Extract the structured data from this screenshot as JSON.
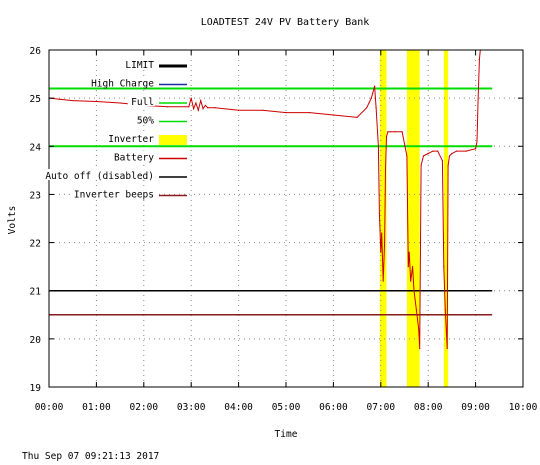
{
  "chart_data": {
    "type": "line",
    "title": "LOADTEST 24V PV Battery Bank",
    "xlabel": "Time",
    "ylabel": "Volts",
    "timestamp": "Thu Sep 07 09:21:13 2017",
    "xlim": [
      0,
      10
    ],
    "ylim": [
      19,
      26
    ],
    "x_ticks": [
      "00:00",
      "01:00",
      "02:00",
      "03:00",
      "04:00",
      "05:00",
      "06:00",
      "07:00",
      "08:00",
      "09:00",
      "10:00"
    ],
    "y_ticks": [
      "19",
      "20",
      "21",
      "22",
      "23",
      "24",
      "25",
      "26"
    ],
    "grid": true,
    "legend_position": "top-left",
    "legend": [
      {
        "label": "LIMIT",
        "color": "#000000",
        "style": "thick-line"
      },
      {
        "label": "High Charge",
        "color": "#1a2fa0",
        "style": "line"
      },
      {
        "label": "Full",
        "color": "#00dd00",
        "style": "line"
      },
      {
        "label": "50%",
        "color": "#00dd00",
        "style": "line"
      },
      {
        "label": "Inverter",
        "color": "#ffff00",
        "style": "box"
      },
      {
        "label": "Battery",
        "color": "#cc0000",
        "style": "line"
      },
      {
        "label": "Auto off (disabled)",
        "color": "#000000",
        "style": "line"
      },
      {
        "label": "Inverter beeps",
        "color": "#8b1a1a",
        "style": "line"
      }
    ],
    "thresholds": {
      "Full": 25.2,
      "50%": 24.0,
      "Auto off (disabled)": 21.0,
      "Inverter beeps": 20.5
    },
    "inverter_periods": [
      [
        6.98,
        7.12
      ],
      [
        7.55,
        7.82
      ],
      [
        8.33,
        8.42
      ]
    ],
    "battery": {
      "x": [
        0.0,
        0.5,
        1.0,
        1.5,
        2.0,
        2.5,
        2.95,
        3.0,
        3.05,
        3.1,
        3.15,
        3.2,
        3.25,
        3.3,
        3.35,
        3.5,
        4.0,
        4.5,
        5.0,
        5.5,
        6.0,
        6.5,
        6.7,
        6.75,
        6.8,
        6.83,
        6.87,
        6.9,
        6.95,
        6.97,
        7.0,
        7.02,
        7.05,
        7.08,
        7.1,
        7.12,
        7.15,
        7.2,
        7.3,
        7.45,
        7.55,
        7.58,
        7.6,
        7.63,
        7.67,
        7.7,
        7.75,
        7.8,
        7.82,
        7.85,
        7.9,
        8.0,
        8.1,
        8.2,
        8.3,
        8.33,
        8.36,
        8.4,
        8.42,
        8.45,
        8.5,
        8.6,
        8.8,
        9.0,
        9.03,
        9.05,
        9.08,
        9.1
      ],
      "y": [
        25.0,
        24.95,
        24.93,
        24.9,
        24.85,
        24.82,
        24.82,
        25.0,
        24.78,
        24.9,
        24.75,
        24.95,
        24.78,
        24.85,
        24.8,
        24.8,
        24.75,
        24.75,
        24.7,
        24.7,
        24.65,
        24.6,
        24.8,
        24.9,
        25.0,
        25.1,
        25.25,
        24.8,
        24.0,
        22.6,
        21.8,
        22.2,
        21.2,
        22.0,
        23.5,
        24.2,
        24.3,
        24.3,
        24.3,
        24.3,
        23.8,
        21.5,
        21.8,
        21.2,
        21.5,
        21.0,
        20.6,
        20.2,
        19.8,
        23.6,
        23.8,
        23.85,
        23.9,
        23.9,
        23.7,
        21.5,
        20.6,
        19.8,
        23.6,
        23.8,
        23.85,
        23.9,
        23.9,
        23.95,
        24.1,
        24.9,
        25.8,
        26.0
      ]
    }
  }
}
